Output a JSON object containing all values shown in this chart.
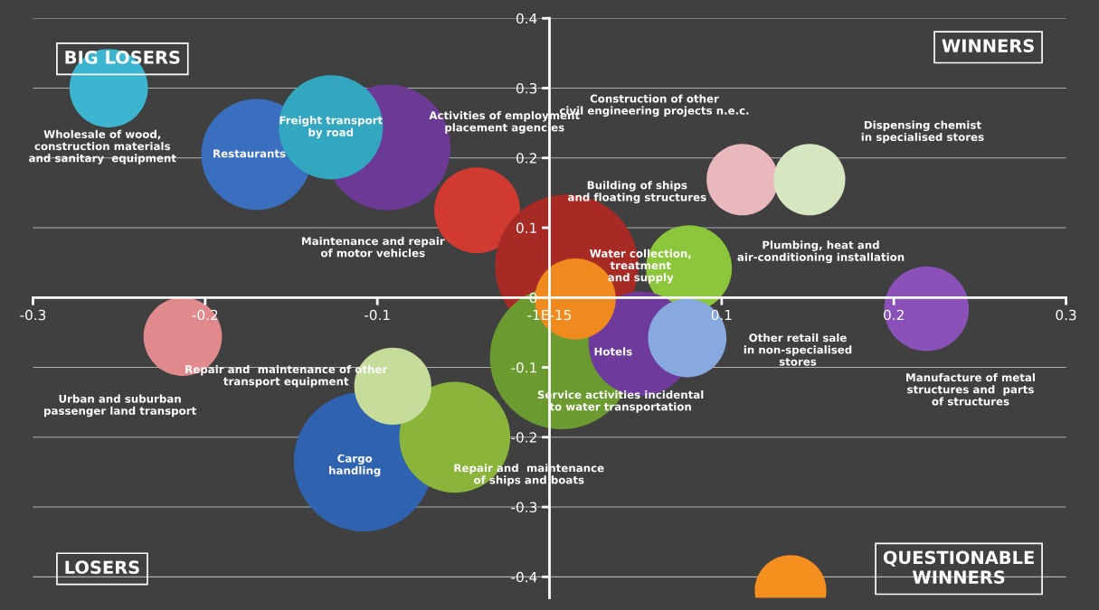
{
  "chart_data": {
    "type": "bubble",
    "xlim": [
      -0.3,
      0.3
    ],
    "ylim": [
      -0.43,
      0.4
    ],
    "xticks": [
      -0.3,
      -0.2,
      -0.1,
      {
        "value": 0,
        "label": "-1E-15"
      },
      0.1,
      0.2,
      0.3
    ],
    "yticks": [
      -0.4,
      -0.3,
      -0.2,
      -0.1,
      0,
      0.1,
      0.2,
      0.3,
      0.4
    ],
    "grid": "y",
    "marker": "circle",
    "annotations": [
      "BIG LOSERS",
      "WINNERS",
      "LOSERS",
      "QUESTIONABLE\nWINNERS"
    ],
    "series": [
      {
        "name": "Wholesale of wood,\nconstruction materials\nand sanitary  equipment",
        "color": "#3bb5d0",
        "x": [
          -0.256
        ],
        "values": [
          0.3
        ],
        "sizes": [
          0.3
        ]
      },
      {
        "name": "Restaurants",
        "color": "#3a6fc0",
        "x": [
          -0.17
        ],
        "values": [
          0.205
        ],
        "sizes": [
          0.6
        ]
      },
      {
        "name": "Activities of employment\nplacement agencies",
        "color": "#6b3a95",
        "x": [
          -0.094
        ],
        "values": [
          0.215
        ],
        "sizes": [
          0.77
        ]
      },
      {
        "name": "Freight transport\nby road",
        "color": "#33a6c0",
        "x": [
          -0.127
        ],
        "values": [
          0.244
        ],
        "sizes": [
          0.53
        ]
      },
      {
        "name": "Maintenance and repair\nof motor vehicles",
        "color": "#d03a30",
        "x": [
          -0.042
        ],
        "values": [
          0.125
        ],
        "sizes": [
          0.36
        ]
      },
      {
        "name": "Building of ships\nand floating structures",
        "color": "#a82a25",
        "x": [
          0.01
        ],
        "values": [
          0.045
        ],
        "sizes": [
          1.0
        ]
      },
      {
        "name": "Plumbing, heat and\nair-conditioning installation",
        "color": "#8cc63a",
        "x": [
          0.081
        ],
        "values": [
          0.042
        ],
        "sizes": [
          0.36
        ]
      },
      {
        "name": "Construction of other\ncivil engineering projects n.e.c.",
        "color": "#e8b8bd",
        "x": [
          0.112
        ],
        "values": [
          0.169
        ],
        "sizes": [
          0.25
        ]
      },
      {
        "name": "Dispensing chemist\nin specialised stores",
        "color": "#d5e6c0",
        "x": [
          0.151
        ],
        "values": [
          0.169
        ],
        "sizes": [
          0.25
        ]
      },
      {
        "name": "Manufacture of metal\nstructures and  parts\nof structures",
        "color": "#8a52b8",
        "x": [
          0.219
        ],
        "values": [
          -0.016
        ],
        "sizes": [
          0.35
        ]
      },
      {
        "name": "Service activities incidental\nto water transportation",
        "color": "#6a9a30",
        "x": [
          0.007
        ],
        "values": [
          -0.086
        ],
        "sizes": [
          1.0
        ]
      },
      {
        "name": "Hotels",
        "color": "#6e3a9c",
        "x": [
          0.053
        ],
        "values": [
          -0.066
        ],
        "sizes": [
          0.53
        ]
      },
      {
        "name": "Other retail sale\nin non-specialised\nstores",
        "color": "#88a8e0",
        "x": [
          0.08
        ],
        "values": [
          -0.058
        ],
        "sizes": [
          0.3
        ]
      },
      {
        "name": "Water collection,\ntreatment\nand supply",
        "color": "#f08a1e",
        "x": [
          0.015
        ],
        "values": [
          -0.002
        ],
        "sizes": [
          0.32
        ]
      },
      {
        "name": "Urban and suburban\npassenger land transport",
        "color": "#e08a8e",
        "x": [
          -0.213
        ],
        "values": [
          -0.056
        ],
        "sizes": [
          0.3
        ]
      },
      {
        "name": "Cargo\nhandling",
        "color": "#2f63b0",
        "x": [
          -0.108
        ],
        "values": [
          -0.235
        ],
        "sizes": [
          0.95
        ]
      },
      {
        "name": "Repair and  maintenance\nof ships and boats",
        "color": "#8ab43a",
        "x": [
          -0.055
        ],
        "values": [
          -0.2
        ],
        "sizes": [
          0.6
        ]
      },
      {
        "name": "Repair and  maintenance of other\ntransport equipment",
        "color": "#c5dc9a",
        "x": [
          -0.091
        ],
        "values": [
          -0.127
        ],
        "sizes": [
          0.29
        ]
      },
      {
        "color": "#f5901e",
        "x": [
          0.14
        ],
        "values": [
          -0.42
        ],
        "sizes": [
          0.25
        ]
      }
    ]
  }
}
